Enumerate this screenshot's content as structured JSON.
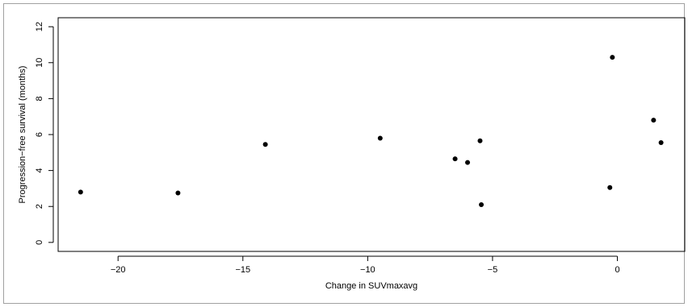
{
  "chart_data": {
    "type": "scatter",
    "title": "",
    "xlabel": "Change in SUVmaxavg",
    "ylabel": "Progression−free survival (months)",
    "xlim": [
      -22.4,
      2.7
    ],
    "ylim": [
      -0.5,
      12.5
    ],
    "x_ticks": [
      -20,
      -15,
      -10,
      -5,
      0
    ],
    "x_tick_labels": [
      "−20",
      "−15",
      "−10",
      "−5",
      "0"
    ],
    "y_ticks": [
      0,
      2,
      4,
      6,
      8,
      10,
      12
    ],
    "y_tick_labels": [
      "0",
      "2",
      "4",
      "6",
      "8",
      "10",
      "12"
    ],
    "grid": false,
    "legend": "none",
    "marker_color": "#000000",
    "points": [
      {
        "x": -21.5,
        "y": 2.8
      },
      {
        "x": -17.6,
        "y": 2.75
      },
      {
        "x": -14.1,
        "y": 5.45
      },
      {
        "x": -9.5,
        "y": 5.8
      },
      {
        "x": -6.5,
        "y": 4.65
      },
      {
        "x": -6.0,
        "y": 4.45
      },
      {
        "x": -5.5,
        "y": 5.65
      },
      {
        "x": -5.45,
        "y": 2.1
      },
      {
        "x": -0.3,
        "y": 3.05
      },
      {
        "x": -0.2,
        "y": 10.3
      },
      {
        "x": 1.45,
        "y": 6.8
      },
      {
        "x": 1.75,
        "y": 5.55
      }
    ]
  }
}
